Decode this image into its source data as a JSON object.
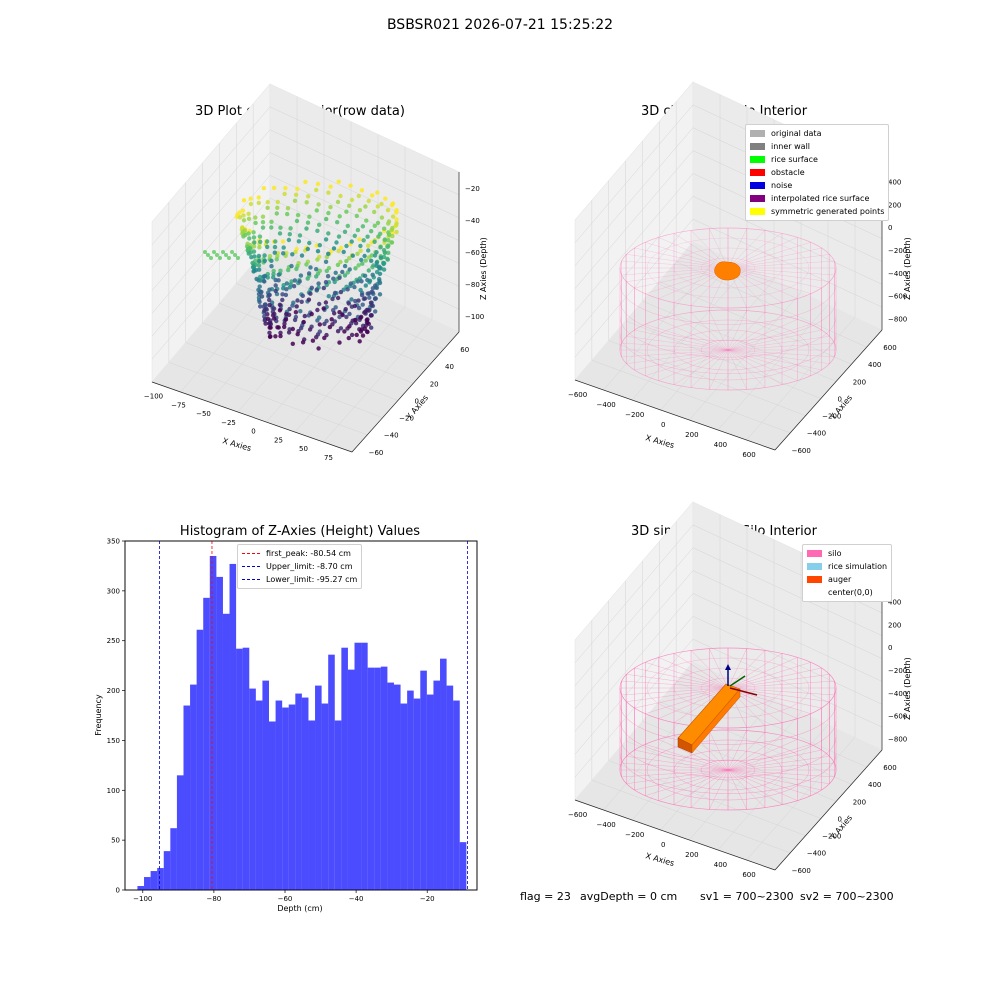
{
  "figure": {
    "suptitle": "BSBSR021 2026-07-21 15:25:22",
    "status": {
      "flag": "flag = 23",
      "avg_depth": "avgDepth = 0 cm",
      "sv1": "sv1 = 700~2300",
      "sv2": "sv2 = 700~2300"
    }
  },
  "chart_data": [
    {
      "type": "scatter",
      "title": "3D Plot of Silo Interior(row data)",
      "xlabel": "X Axies",
      "ylabel": "Y Axies",
      "zlabel": "Z Axies (Depth)",
      "xticks": [
        "−100",
        "−75",
        "−50",
        "−25",
        "0",
        "25",
        "50",
        "75"
      ],
      "yticks": [
        "−60",
        "−40",
        "−20",
        "0",
        "20",
        "40",
        "60"
      ],
      "zticks": [
        "−20",
        "−40",
        "−60",
        "−80",
        "−100"
      ],
      "xlim": [
        -100,
        80
      ],
      "ylim": [
        -60,
        60
      ],
      "zlim": [
        -105,
        -10
      ],
      "colormap": "viridis"
    },
    {
      "type": "scatter",
      "title": "3D classify of Silo Interior",
      "xlabel": "X Axies",
      "ylabel": "Y Axies",
      "zlabel": "Z Axies (Depth)",
      "xticks": [
        "−600",
        "−400",
        "−200",
        "0",
        "200",
        "400",
        "600"
      ],
      "yticks": [
        "−600",
        "−400",
        "−200",
        "0",
        "200",
        "400",
        "600"
      ],
      "zticks": [
        "400",
        "200",
        "0",
        "−200",
        "−400",
        "−600",
        "−800"
      ],
      "legend": [
        {
          "label": "original data",
          "color": "#b0b0b0"
        },
        {
          "label": "inner wall",
          "color": "#808080"
        },
        {
          "label": "rice surface",
          "color": "#00ff00"
        },
        {
          "label": "obstacle",
          "color": "#ff0000"
        },
        {
          "label": "noise",
          "color": "#0000e0"
        },
        {
          "label": "interpolated rice surface",
          "color": "#800080"
        },
        {
          "label": "symmetric generated points",
          "color": "#ffff00"
        }
      ],
      "legend_position": "top-right"
    },
    {
      "type": "bar",
      "title": "Histogram of Z-Axies (Height) Values",
      "xlabel": "Depth (cm)",
      "ylabel": "Frequency",
      "xlim": [
        -105,
        -6
      ],
      "ylim": [
        0,
        350
      ],
      "xticks": [
        -100,
        -80,
        -60,
        -40,
        -20
      ],
      "yticks": [
        0,
        50,
        100,
        150,
        200,
        250,
        300,
        350
      ],
      "bin_start": -101.5,
      "bin_width": 1.85,
      "values": [
        4,
        13,
        19,
        22,
        39,
        62,
        115,
        185,
        206,
        261,
        293,
        335,
        314,
        277,
        327,
        242,
        243,
        202,
        190,
        210,
        169,
        190,
        183,
        186,
        197,
        193,
        170,
        205,
        187,
        236,
        170,
        243,
        221,
        248,
        248,
        223,
        223,
        224,
        208,
        206,
        187,
        200,
        192,
        220,
        196,
        210,
        232,
        205,
        190,
        48
      ],
      "color": "#0000ff",
      "reference_lines": [
        {
          "label": "first_peak: -80.54 cm",
          "x": -80.54,
          "color": "#ff0000"
        },
        {
          "label": "Upper_limit: -8.70 cm",
          "x": -8.7,
          "color": "#0000cc"
        },
        {
          "label": "Lower_limit: -95.27 cm",
          "x": -95.27,
          "color": "#0000cc"
        }
      ],
      "legend_position": "top-center"
    },
    {
      "type": "scatter",
      "title": "3D simulation of Silo Interior",
      "xlabel": "X Axies",
      "ylabel": "Y Axies",
      "zlabel": "Z Axies (Depth)",
      "xticks": [
        "−600",
        "−400",
        "−200",
        "0",
        "200",
        "400",
        "600"
      ],
      "yticks": [
        "−600",
        "−400",
        "−200",
        "0",
        "200",
        "400",
        "600"
      ],
      "zticks": [
        "400",
        "200",
        "0",
        "−200",
        "−400",
        "−600",
        "−800"
      ],
      "legend": [
        {
          "label": "silo",
          "color": "#ff69b4"
        },
        {
          "label": "rice simulation",
          "color": "#87ceeb"
        },
        {
          "label": "auger",
          "color": "#ff4500"
        },
        {
          "label": "center(0,0)",
          "color": "#ffffff"
        }
      ],
      "legend_position": "top-right"
    }
  ]
}
